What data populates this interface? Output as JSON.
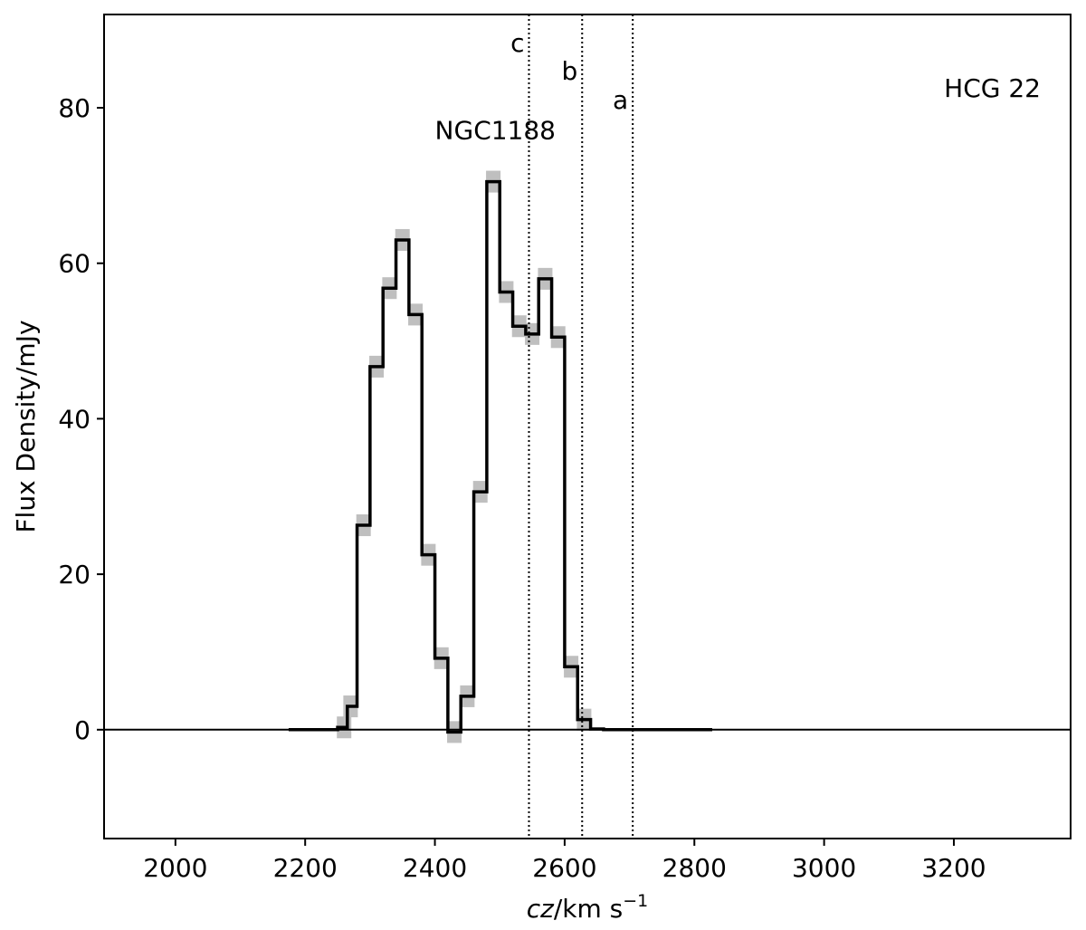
{
  "chart_data": {
    "type": "line",
    "title": "",
    "xlabel": "cz/km s⁻¹",
    "xlabel_parts": {
      "var": "cz",
      "unit": "/km s",
      "exp": "−1"
    },
    "ylabel": "Flux Density/mJy",
    "xlim": [
      1890,
      3380
    ],
    "ylim": [
      -14,
      92
    ],
    "xticks": [
      2000,
      2200,
      2400,
      2600,
      2800,
      3000,
      3200
    ],
    "yticks": [
      0,
      20,
      40,
      60,
      80
    ],
    "grid": false,
    "legend": "none",
    "label_text": "HCG 22",
    "series": [
      {
        "style": "step",
        "color": "#000000",
        "error_color": "#bfbfbf",
        "x": [
          2183,
          2200,
          2220,
          2240,
          2260,
          2270,
          2290,
          2310,
          2330,
          2350,
          2370,
          2390,
          2410,
          2430,
          2450,
          2470,
          2490,
          2510,
          2530,
          2550,
          2570,
          2590,
          2610,
          2630,
          2650,
          2670,
          2690,
          2710,
          2730,
          2750,
          2770,
          2790,
          2815
        ],
        "y": [
          0,
          0,
          0,
          0,
          0.3,
          3,
          26.3,
          46.7,
          56.8,
          63.0,
          53.4,
          22.5,
          9.2,
          -0.3,
          4.3,
          30.6,
          70.5,
          56.3,
          51.9,
          50.9,
          58.0,
          50.5,
          8.1,
          1.3,
          0.1,
          0,
          0,
          0,
          0,
          0,
          0,
          0,
          0
        ],
        "error": [
          0,
          0,
          0,
          0,
          1.4,
          1.4,
          1.4,
          1.4,
          1.4,
          1.4,
          1.4,
          1.4,
          1.4,
          1.4,
          1.4,
          1.4,
          1.4,
          1.4,
          1.4,
          1.4,
          1.4,
          1.4,
          1.4,
          1.4,
          0,
          0,
          0,
          0,
          0,
          0,
          0,
          0,
          0
        ]
      }
    ],
    "baseline": 0,
    "markers": [
      {
        "label": "c",
        "x": 2545
      },
      {
        "label": "b",
        "x": 2627
      },
      {
        "label": "a",
        "x": 2705
      }
    ],
    "annotations": [
      {
        "text": "NGC1188",
        "x": 2400,
        "y": 76
      }
    ]
  }
}
